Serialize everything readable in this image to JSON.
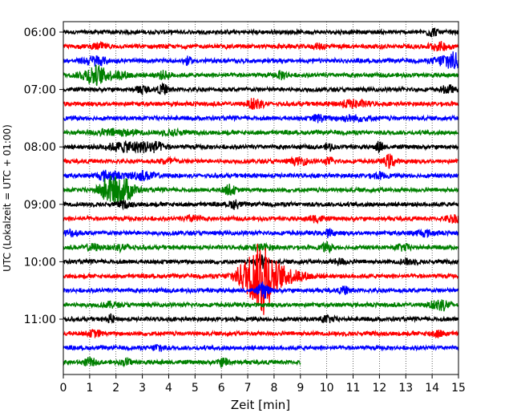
{
  "chart_data": {
    "type": "line",
    "title": "",
    "xlabel": "Zeit  [min]",
    "ylabel": "UTC (Lokalzeit = UTC + 01:00)",
    "xlim": [
      0,
      15
    ],
    "x_ticks": [
      "0",
      "1",
      "2",
      "3",
      "4",
      "5",
      "6",
      "7",
      "8",
      "9",
      "10",
      "11",
      "12",
      "13",
      "14",
      "15"
    ],
    "y_tick_labels": [
      "06:00",
      "07:00",
      "08:00",
      "09:00",
      "10:00",
      "11:00"
    ],
    "grid": "vertical-dotted",
    "trace_minutes": 15,
    "row_count": 24,
    "colors": [
      "#000000",
      "#ff0000",
      "#0000ff",
      "#008000"
    ],
    "series": [
      {
        "start": "06:00",
        "color": "#000000",
        "noise": 0.9,
        "events": [
          {
            "t": 14.0,
            "amp": 2.0,
            "w": 0.15
          }
        ]
      },
      {
        "start": "06:15",
        "color": "#ff0000",
        "noise": 0.9,
        "events": [
          {
            "t": 1.4,
            "amp": 1.5,
            "w": 0.2
          },
          {
            "t": 9.8,
            "amp": 1.3,
            "w": 0.2
          },
          {
            "t": 14.3,
            "amp": 1.8,
            "w": 0.3
          }
        ]
      },
      {
        "start": "06:30",
        "color": "#0000ff",
        "noise": 0.9,
        "events": [
          {
            "t": 1.2,
            "amp": 2.5,
            "w": 0.3
          },
          {
            "t": 4.7,
            "amp": 2.0,
            "w": 0.1
          },
          {
            "t": 14.7,
            "amp": 4.5,
            "w": 0.35
          }
        ]
      },
      {
        "start": "06:45",
        "color": "#008000",
        "noise": 0.9,
        "events": [
          {
            "t": 1.2,
            "amp": 5.0,
            "w": 0.35
          },
          {
            "t": 2.2,
            "amp": 1.6,
            "w": 0.3
          },
          {
            "t": 3.8,
            "amp": 1.8,
            "w": 0.2
          },
          {
            "t": 8.3,
            "amp": 2.0,
            "w": 0.15
          }
        ]
      },
      {
        "start": "07:00",
        "color": "#000000",
        "noise": 0.9,
        "events": [
          {
            "t": 3.0,
            "amp": 2.0,
            "w": 0.15
          },
          {
            "t": 3.8,
            "amp": 2.5,
            "w": 0.15
          },
          {
            "t": 14.6,
            "amp": 2.0,
            "w": 0.15
          }
        ]
      },
      {
        "start": "07:15",
        "color": "#ff0000",
        "noise": 0.9,
        "events": [
          {
            "t": 7.3,
            "amp": 3.0,
            "w": 0.2
          },
          {
            "t": 11.0,
            "amp": 1.8,
            "w": 0.4
          }
        ]
      },
      {
        "start": "07:30",
        "color": "#0000ff",
        "noise": 0.9,
        "events": [
          {
            "t": 9.7,
            "amp": 2.0,
            "w": 0.15
          },
          {
            "t": 11.0,
            "amp": 1.3,
            "w": 0.5
          }
        ]
      },
      {
        "start": "07:45",
        "color": "#008000",
        "noise": 0.9,
        "events": [
          {
            "t": 2.0,
            "amp": 1.5,
            "w": 0.6
          },
          {
            "t": 4.2,
            "amp": 1.3,
            "w": 0.3
          }
        ]
      },
      {
        "start": "08:00",
        "color": "#000000",
        "noise": 0.9,
        "events": [
          {
            "t": 2.5,
            "amp": 2.5,
            "w": 0.6
          },
          {
            "t": 3.4,
            "amp": 2.0,
            "w": 0.3
          },
          {
            "t": 10.1,
            "amp": 1.8,
            "w": 0.1
          },
          {
            "t": 12.0,
            "amp": 3.0,
            "w": 0.1
          }
        ]
      },
      {
        "start": "08:15",
        "color": "#ff0000",
        "noise": 0.9,
        "events": [
          {
            "t": 4.0,
            "amp": 1.5,
            "w": 0.2
          },
          {
            "t": 9.0,
            "amp": 1.5,
            "w": 0.3
          },
          {
            "t": 10.1,
            "amp": 1.6,
            "w": 0.15
          },
          {
            "t": 12.4,
            "amp": 3.5,
            "w": 0.15
          }
        ]
      },
      {
        "start": "08:30",
        "color": "#0000ff",
        "noise": 0.9,
        "events": [
          {
            "t": 1.7,
            "amp": 2.5,
            "w": 0.3
          },
          {
            "t": 3.0,
            "amp": 2.0,
            "w": 0.4
          },
          {
            "t": 12.0,
            "amp": 1.3,
            "w": 0.2
          }
        ]
      },
      {
        "start": "08:45",
        "color": "#008000",
        "noise": 0.9,
        "events": [
          {
            "t": 1.7,
            "amp": 6.0,
            "w": 0.25
          },
          {
            "t": 2.3,
            "amp": 6.0,
            "w": 0.3
          },
          {
            "t": 6.3,
            "amp": 2.5,
            "w": 0.15
          }
        ]
      },
      {
        "start": "09:00",
        "color": "#000000",
        "noise": 0.9,
        "events": [
          {
            "t": 2.3,
            "amp": 1.5,
            "w": 0.2
          },
          {
            "t": 6.5,
            "amp": 2.0,
            "w": 0.15
          }
        ]
      },
      {
        "start": "09:15",
        "color": "#ff0000",
        "noise": 0.9,
        "events": [
          {
            "t": 4.9,
            "amp": 1.5,
            "w": 0.2
          },
          {
            "t": 9.6,
            "amp": 1.6,
            "w": 0.2
          },
          {
            "t": 14.8,
            "amp": 1.8,
            "w": 0.2
          }
        ]
      },
      {
        "start": "09:30",
        "color": "#0000ff",
        "noise": 0.9,
        "events": [
          {
            "t": 0.3,
            "amp": 1.6,
            "w": 0.2
          },
          {
            "t": 10.1,
            "amp": 2.0,
            "w": 0.1
          },
          {
            "t": 13.7,
            "amp": 1.3,
            "w": 0.3
          }
        ]
      },
      {
        "start": "09:45",
        "color": "#008000",
        "noise": 0.9,
        "events": [
          {
            "t": 1.1,
            "amp": 1.6,
            "w": 0.2
          },
          {
            "t": 2.2,
            "amp": 1.4,
            "w": 0.3
          },
          {
            "t": 7.5,
            "amp": 1.4,
            "w": 0.3
          },
          {
            "t": 10.0,
            "amp": 2.0,
            "w": 0.15
          },
          {
            "t": 12.9,
            "amp": 1.5,
            "w": 0.2
          }
        ]
      },
      {
        "start": "10:00",
        "color": "#000000",
        "noise": 0.9,
        "events": [
          {
            "t": 7.5,
            "amp": 4.0,
            "w": 0.15
          },
          {
            "t": 10.5,
            "amp": 1.3,
            "w": 0.2
          },
          {
            "t": 13.1,
            "amp": 1.3,
            "w": 0.2
          }
        ]
      },
      {
        "start": "10:15",
        "color": "#ff0000",
        "noise": 0.9,
        "events": [
          {
            "t": 7.4,
            "amp": 14.0,
            "w": 0.5
          },
          {
            "t": 7.6,
            "amp": 10.0,
            "w": 0.15
          },
          {
            "t": 8.5,
            "amp": 3.0,
            "w": 0.6
          }
        ]
      },
      {
        "start": "10:30",
        "color": "#0000ff",
        "noise": 0.9,
        "events": [
          {
            "t": 7.6,
            "amp": 4.0,
            "w": 0.15
          },
          {
            "t": 10.7,
            "amp": 1.8,
            "w": 0.15
          }
        ]
      },
      {
        "start": "10:45",
        "color": "#008000",
        "noise": 0.9,
        "events": [
          {
            "t": 1.8,
            "amp": 1.3,
            "w": 0.2
          },
          {
            "t": 14.2,
            "amp": 2.2,
            "w": 0.2
          },
          {
            "t": 14.5,
            "amp": 1.6,
            "w": 0.2
          }
        ]
      },
      {
        "start": "11:00",
        "color": "#000000",
        "noise": 0.9,
        "events": [
          {
            "t": 1.8,
            "amp": 2.0,
            "w": 0.1
          },
          {
            "t": 10.0,
            "amp": 1.5,
            "w": 0.2
          }
        ]
      },
      {
        "start": "11:15",
        "color": "#ff0000",
        "noise": 0.9,
        "events": [
          {
            "t": 1.2,
            "amp": 1.5,
            "w": 0.2
          },
          {
            "t": 14.2,
            "amp": 1.6,
            "w": 0.2
          }
        ]
      },
      {
        "start": "11:30",
        "color": "#0000ff",
        "noise": 0.9,
        "events": [
          {
            "t": 3.6,
            "amp": 2.0,
            "w": 0.15
          }
        ]
      },
      {
        "start": "11:45",
        "color": "#008000",
        "noise": 0.9,
        "end": 9.0,
        "events": [
          {
            "t": 1.0,
            "amp": 2.0,
            "w": 0.15
          },
          {
            "t": 2.4,
            "amp": 1.6,
            "w": 0.15
          },
          {
            "t": 6.1,
            "amp": 2.0,
            "w": 0.15
          }
        ]
      }
    ]
  }
}
